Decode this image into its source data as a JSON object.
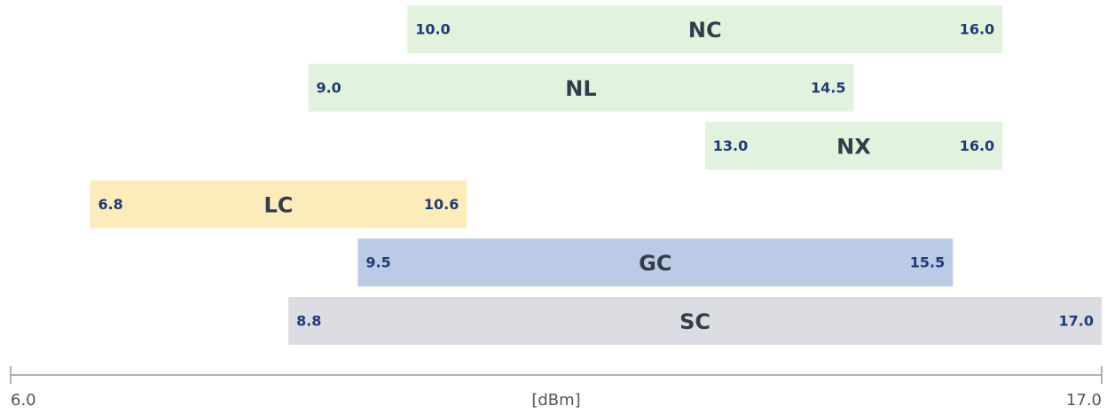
{
  "chart_data": {
    "type": "range-bar",
    "bars": [
      {
        "name": "NC",
        "color": "#e1f3dd",
        "low": 10,
        "high": 16,
        "low_label": "10.0",
        "high_label": "16.0"
      },
      {
        "name": "NL",
        "color": "#e1f3dd",
        "low": 9,
        "high": 14.5,
        "low_label": "9.0",
        "high_label": "14.5"
      },
      {
        "name": "NX",
        "color": "#e1f3dd",
        "low": 13,
        "high": 16,
        "low_label": "13.0",
        "high_label": "16.0"
      },
      {
        "name": "LC",
        "color": "#fbecb9",
        "low": 6.8,
        "high": 10.6,
        "low_label": "6.8",
        "high_label": "10.6"
      },
      {
        "name": "GC",
        "color": "#bccbe5",
        "low": 9.5,
        "high": 15.5,
        "low_label": "9.5",
        "high_label": "15.5"
      },
      {
        "name": "SC",
        "color": "#dcdde2",
        "low": 8.8,
        "high": 17,
        "low_label": "8.8",
        "high_label": "17.0"
      }
    ],
    "xlabel": "[dBm]",
    "xlim": [
      6,
      17
    ],
    "xticks": [
      {
        "value": 6,
        "label": "6.0"
      },
      {
        "value": 17,
        "label": "17.0"
      }
    ]
  }
}
